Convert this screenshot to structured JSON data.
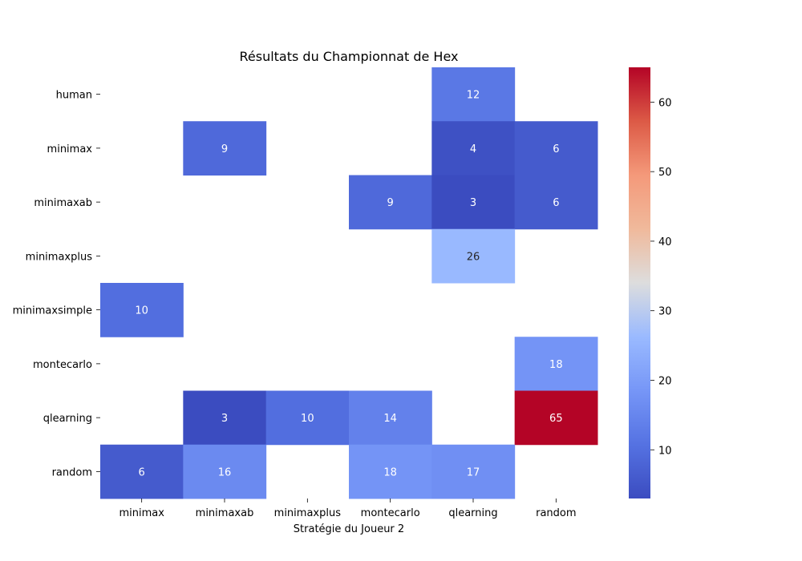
{
  "chart_data": {
    "type": "heatmap",
    "title": "Résultats du Championnat de Hex",
    "xlabel": "Stratégie du Joueur 2",
    "ylabel": "",
    "x_categories": [
      "minimax",
      "minimaxab",
      "minimaxplus",
      "montecarlo",
      "qlearning",
      "random"
    ],
    "y_categories": [
      "human",
      "minimax",
      "minimaxab",
      "minimaxplus",
      "minimaxsimple",
      "montecarlo",
      "qlearning",
      "random"
    ],
    "values": [
      [
        null,
        null,
        null,
        null,
        12,
        null
      ],
      [
        null,
        9,
        null,
        null,
        4,
        6
      ],
      [
        null,
        null,
        null,
        9,
        3,
        6
      ],
      [
        null,
        null,
        null,
        null,
        26,
        null
      ],
      [
        10,
        null,
        null,
        null,
        null,
        null
      ],
      [
        null,
        null,
        null,
        null,
        null,
        18
      ],
      [
        null,
        3,
        10,
        14,
        null,
        65
      ],
      [
        6,
        16,
        null,
        18,
        17,
        null
      ]
    ],
    "colormap": "coolwarm",
    "vmin": 3,
    "vmax": 65,
    "colorbar_ticks": [
      10,
      20,
      30,
      40,
      50,
      60
    ],
    "colors": {
      "low": "#3b4cc0",
      "mid": "#dddddd",
      "high": "#b40426"
    }
  }
}
